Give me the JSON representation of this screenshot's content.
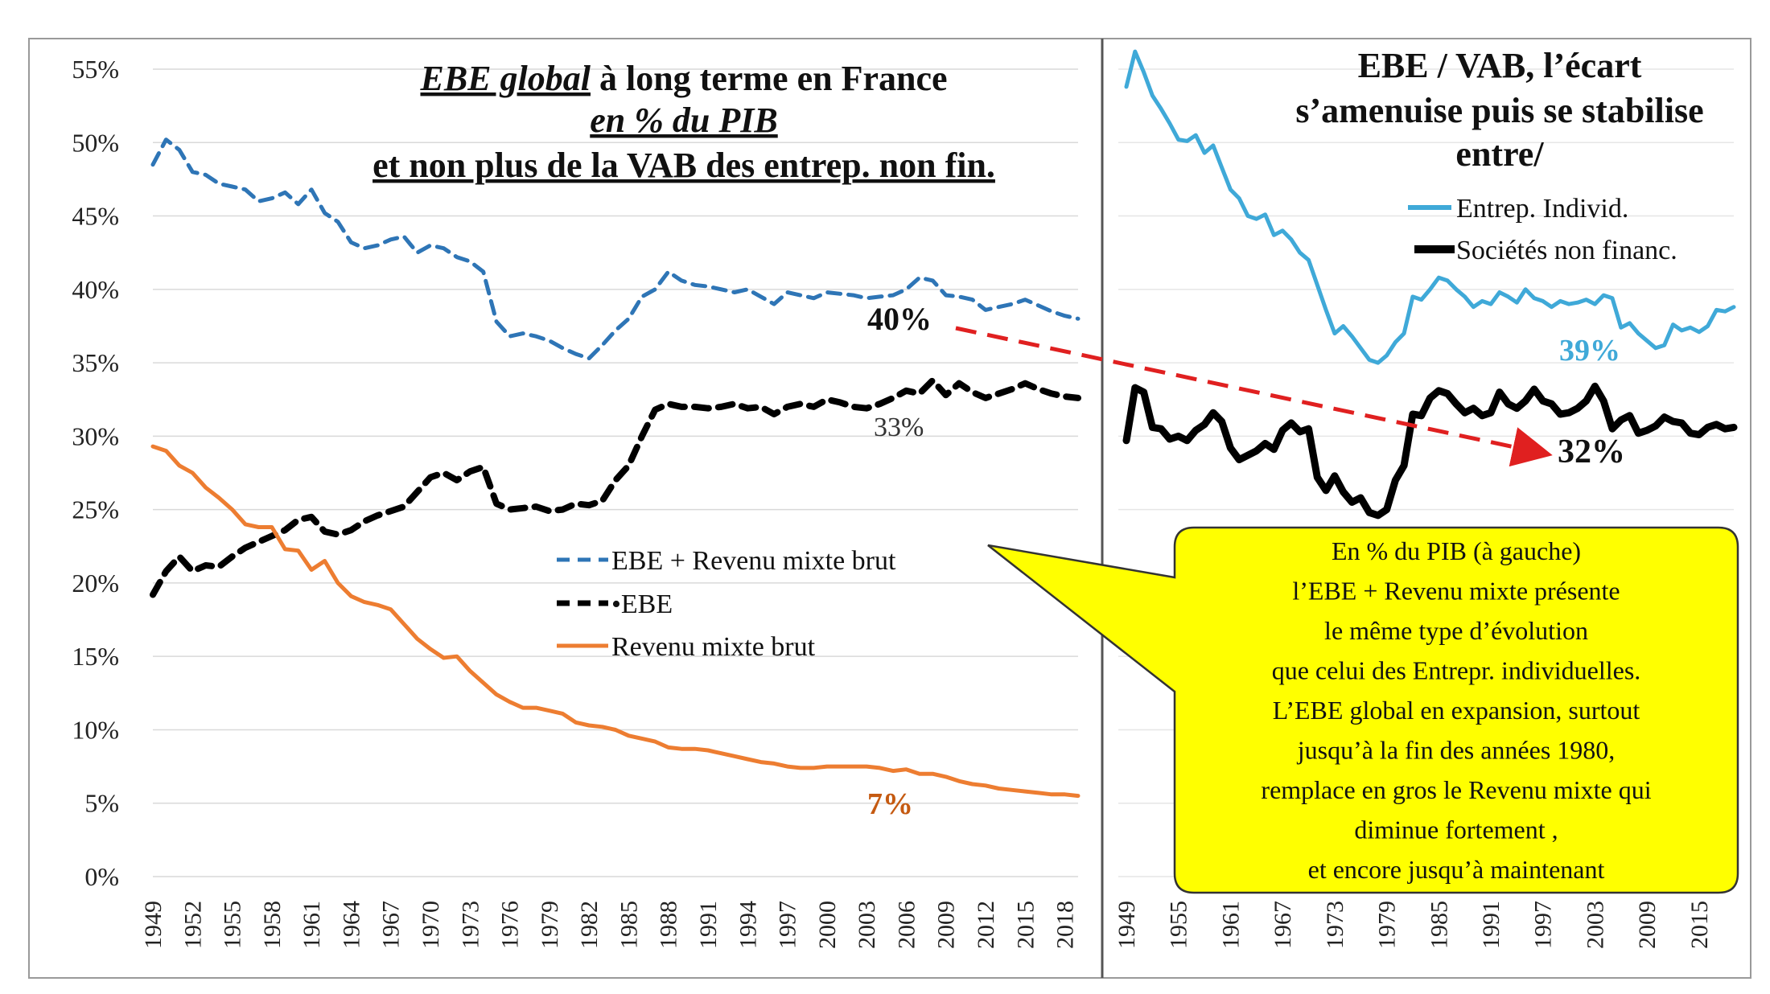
{
  "chart_data": [
    {
      "type": "line",
      "title_lines": [
        {
          "parts": [
            {
              "text": "EBE global",
              "italic": true,
              "underline": true
            },
            {
              "text": " à long terme en France"
            }
          ]
        },
        {
          "parts": [
            {
              "text": "en % du PIB",
              "italic": true,
              "underline": true
            }
          ]
        },
        {
          "parts": [
            {
              "text": "et non plus de la VAB des  entrep. non fin.",
              "underline": true
            }
          ]
        }
      ],
      "y_tick_labels": [
        "0%",
        "5%",
        "10%",
        "15%",
        "20%",
        "25%",
        "30%",
        "35%",
        "40%",
        "45%",
        "50%",
        "55%"
      ],
      "ylim": [
        0,
        55
      ],
      "x_range": [
        1949,
        2019
      ],
      "x_tick_labels": [
        "1949",
        "1952",
        "1955",
        "1958",
        "1961",
        "1964",
        "1967",
        "1970",
        "1973",
        "1976",
        "1979",
        "1982",
        "1985",
        "1988",
        "1991",
        "1994",
        "1997",
        "2000",
        "2003",
        "2006",
        "2009",
        "2012",
        "2015",
        "2018"
      ],
      "series": [
        {
          "name": "EBE + Revenu mixte brut",
          "color": "#2e75b6",
          "style": "dashed",
          "x": [
            1949,
            1950,
            1951,
            1952,
            1953,
            1954,
            1955,
            1956,
            1957,
            1958,
            1959,
            1960,
            1961,
            1962,
            1963,
            1964,
            1965,
            1966,
            1967,
            1968,
            1969,
            1970,
            1971,
            1972,
            1973,
            1974,
            1975,
            1976,
            1977,
            1978,
            1979,
            1980,
            1981,
            1982,
            1983,
            1984,
            1985,
            1986,
            1987,
            1988,
            1989,
            1990,
            1991,
            1992,
            1993,
            1994,
            1995,
            1996,
            1997,
            1998,
            1999,
            2000,
            2001,
            2002,
            2003,
            2004,
            2005,
            2006,
            2007,
            2008,
            2009,
            2010,
            2011,
            2012,
            2013,
            2014,
            2015,
            2016,
            2017,
            2018,
            2019
          ],
          "values": [
            48.5,
            50.2,
            49.5,
            48,
            47.8,
            47.2,
            47,
            46.8,
            46,
            46.2,
            46.6,
            45.8,
            46.8,
            45.2,
            44.6,
            43.2,
            42.8,
            43,
            43.4,
            43.6,
            42.5,
            43,
            42.8,
            42.2,
            41.9,
            41.2,
            37.8,
            36.8,
            37,
            36.8,
            36.5,
            36,
            35.6,
            35.3,
            36.2,
            37.2,
            38,
            39.5,
            40,
            41.2,
            40.6,
            40.3,
            40.2,
            40,
            39.8,
            40,
            39.5,
            39,
            39.8,
            39.6,
            39.4,
            39.8,
            39.7,
            39.6,
            39.4,
            39.5,
            39.6,
            40,
            40.8,
            40.6,
            39.6,
            39.5,
            39.3,
            38.6,
            38.8,
            39,
            39.3,
            38.9,
            38.5,
            38.2,
            38
          ]
        },
        {
          "name": "EBE",
          "color": "#000000",
          "style": "dashed",
          "x": [
            1949,
            1950,
            1951,
            1952,
            1953,
            1954,
            1955,
            1956,
            1957,
            1958,
            1959,
            1960,
            1961,
            1962,
            1963,
            1964,
            1965,
            1966,
            1967,
            1968,
            1969,
            1970,
            1971,
            1972,
            1973,
            1974,
            1975,
            1976,
            1977,
            1978,
            1979,
            1980,
            1981,
            1982,
            1983,
            1984,
            1985,
            1986,
            1987,
            1988,
            1989,
            1990,
            1991,
            1992,
            1993,
            1994,
            1995,
            1996,
            1997,
            1998,
            1999,
            2000,
            2001,
            2002,
            2003,
            2004,
            2005,
            2006,
            2007,
            2008,
            2009,
            2010,
            2011,
            2012,
            2013,
            2014,
            2015,
            2016,
            2017,
            2018,
            2019
          ],
          "values": [
            19.2,
            20.8,
            21.8,
            20.8,
            21.2,
            21.1,
            21.8,
            22.4,
            22.8,
            23.2,
            23.6,
            24.3,
            24.5,
            23.5,
            23.3,
            23.6,
            24.2,
            24.6,
            24.9,
            25.2,
            26.2,
            27.2,
            27.5,
            27,
            27.6,
            27.9,
            25.4,
            25,
            25.1,
            25.2,
            24.9,
            25,
            25.4,
            25.3,
            25.6,
            27,
            28,
            30,
            31.8,
            32.2,
            32,
            32,
            31.9,
            32,
            32.2,
            31.9,
            32,
            31.5,
            32,
            32.2,
            32,
            32.5,
            32.3,
            32,
            31.9,
            32.2,
            32.6,
            33.1,
            32.9,
            33.8,
            32.8,
            33.6,
            33,
            32.6,
            32.9,
            33.2,
            33.6,
            33.2,
            32.9,
            32.7,
            32.6
          ]
        },
        {
          "name": "Revenu mixte brut",
          "color": "#ed7d31",
          "style": "solid",
          "x": [
            1949,
            1950,
            1951,
            1952,
            1953,
            1954,
            1955,
            1956,
            1957,
            1958,
            1959,
            1960,
            1961,
            1962,
            1963,
            1964,
            1965,
            1966,
            1967,
            1968,
            1969,
            1970,
            1971,
            1972,
            1973,
            1974,
            1975,
            1976,
            1977,
            1978,
            1979,
            1980,
            1981,
            1982,
            1983,
            1984,
            1985,
            1986,
            1987,
            1988,
            1989,
            1990,
            1991,
            1992,
            1993,
            1994,
            1995,
            1996,
            1997,
            1998,
            1999,
            2000,
            2001,
            2002,
            2003,
            2004,
            2005,
            2006,
            2007,
            2008,
            2009,
            2010,
            2011,
            2012,
            2013,
            2014,
            2015,
            2016,
            2017,
            2018,
            2019
          ],
          "values": [
            29.3,
            29,
            28,
            27.5,
            26.5,
            25.8,
            25,
            24,
            23.8,
            23.8,
            22.3,
            22.2,
            20.9,
            21.5,
            20,
            19.1,
            18.7,
            18.5,
            18.2,
            17.2,
            16.2,
            15.5,
            14.9,
            15,
            14,
            13.2,
            12.4,
            11.9,
            11.5,
            11.5,
            11.3,
            11.1,
            10.5,
            10.3,
            10.2,
            10,
            9.6,
            9.4,
            9.2,
            8.8,
            8.7,
            8.7,
            8.6,
            8.4,
            8.2,
            8,
            7.8,
            7.7,
            7.5,
            7.4,
            7.4,
            7.5,
            7.5,
            7.5,
            7.5,
            7.4,
            7.2,
            7.3,
            7,
            7,
            6.8,
            6.5,
            6.3,
            6.2,
            6,
            5.9,
            5.8,
            5.7,
            5.6,
            5.6,
            5.5
          ]
        }
      ],
      "annotations": [
        {
          "text": "40%",
          "color": "#111111"
        },
        {
          "text": "33%",
          "color": "#333333"
        },
        {
          "text": "7%",
          "color": "#c55a11"
        }
      ],
      "legend": [
        "EBE + Revenu mixte brut",
        "•EBE",
        "Revenu mixte brut"
      ],
      "legend_position": "center"
    },
    {
      "type": "line",
      "title_lines": [
        "EBE / VAB, l’écart",
        "s’amenuise puis se stabilise",
        "entre/"
      ],
      "ylim": [
        0,
        55
      ],
      "x_range": [
        1949,
        2019
      ],
      "x_tick_labels": [
        "1949",
        "1955",
        "1961",
        "1967",
        "1973",
        "1979",
        "1985",
        "1991",
        "1997",
        "2003",
        "2009",
        "2015"
      ],
      "series": [
        {
          "name": "Entrep. Individ.",
          "color": "#3fa9d8",
          "style": "solid",
          "x": [
            1949,
            1950,
            1951,
            1952,
            1953,
            1954,
            1955,
            1956,
            1957,
            1958,
            1959,
            1960,
            1961,
            1962,
            1963,
            1964,
            1965,
            1966,
            1967,
            1968,
            1969,
            1970,
            1971,
            1972,
            1973,
            1974,
            1975,
            1976,
            1977,
            1978,
            1979,
            1980,
            1981,
            1982,
            1983,
            1984,
            1985,
            1986,
            1987,
            1988,
            1989,
            1990,
            1991,
            1992,
            1993,
            1994,
            1995,
            1996,
            1997,
            1998,
            1999,
            2000,
            2001,
            2002,
            2003,
            2004,
            2005,
            2006,
            2007,
            2008,
            2009,
            2010,
            2011,
            2012,
            2013,
            2014,
            2015,
            2016,
            2017,
            2018,
            2019
          ],
          "values": [
            53.8,
            56.2,
            54.8,
            53.2,
            52.3,
            51.3,
            50.2,
            50.1,
            50.5,
            49.3,
            49.8,
            48.3,
            46.8,
            46.2,
            45,
            44.8,
            45.1,
            43.7,
            44,
            43.4,
            42.5,
            42,
            40.3,
            38.6,
            37,
            37.5,
            36.8,
            36,
            35.2,
            35,
            35.5,
            36.4,
            37,
            39.5,
            39.3,
            40,
            40.8,
            40.6,
            40,
            39.5,
            38.8,
            39.2,
            39,
            39.8,
            39.5,
            39.1,
            40,
            39.4,
            39.2,
            38.8,
            39.2,
            39,
            39.1,
            39.3,
            39,
            39.6,
            39.4,
            37.4,
            37.7,
            37,
            36.5,
            36,
            36.2,
            37.6,
            37.2,
            37.4,
            37.1,
            37.5,
            38.6,
            38.5,
            38.8
          ]
        },
        {
          "name": "Sociétés non financ.",
          "color": "#000000",
          "style": "solid",
          "x": [
            1949,
            1950,
            1951,
            1952,
            1953,
            1954,
            1955,
            1956,
            1957,
            1958,
            1959,
            1960,
            1961,
            1962,
            1963,
            1964,
            1965,
            1966,
            1967,
            1968,
            1969,
            1970,
            1971,
            1972,
            1973,
            1974,
            1975,
            1976,
            1977,
            1978,
            1979,
            1980,
            1981,
            1982,
            1983,
            1984,
            1985,
            1986,
            1987,
            1988,
            1989,
            1990,
            1991,
            1992,
            1993,
            1994,
            1995,
            1996,
            1997,
            1998,
            1999,
            2000,
            2001,
            2002,
            2003,
            2004,
            2005,
            2006,
            2007,
            2008,
            2009,
            2010,
            2011,
            2012,
            2013,
            2014,
            2015,
            2016,
            2017,
            2018,
            2019
          ],
          "values": [
            29.7,
            33.3,
            33,
            30.6,
            30.5,
            29.8,
            30,
            29.7,
            30.4,
            30.8,
            31.6,
            31,
            29.2,
            28.4,
            28.7,
            29,
            29.5,
            29.1,
            30.4,
            30.9,
            30.3,
            30.5,
            27.2,
            26.3,
            27.3,
            26.2,
            25.5,
            25.8,
            24.8,
            24.6,
            25,
            27,
            28,
            31.5,
            31.4,
            32.6,
            33.1,
            32.9,
            32.2,
            31.6,
            31.9,
            31.4,
            31.6,
            33,
            32.2,
            31.9,
            32.4,
            33.2,
            32.4,
            32.2,
            31.5,
            31.6,
            31.9,
            32.4,
            33.4,
            32.4,
            30.5,
            31.1,
            31.4,
            30.2,
            30.4,
            30.7,
            31.3,
            31,
            30.9,
            30.2,
            30.1,
            30.6,
            30.8,
            30.5,
            30.6
          ]
        }
      ],
      "annotations": [
        {
          "text": "39%",
          "color": "#3fa9d8"
        },
        {
          "text": "32%",
          "color": "#111111"
        }
      ],
      "legend": [
        "Entrep. Individ.",
        "Sociétés non financ."
      ],
      "legend_position": "top-right"
    }
  ],
  "arrow": {
    "color": "#e02020",
    "from_label": "40%",
    "to_label": "32%"
  },
  "callout": {
    "fill": "#ffff00",
    "lines": [
      "En % du PIB (à gauche)",
      "l’EBE + Revenu mixte présente",
      "le même type d’évolution",
      "que celui des Entrepr. individuelles.",
      "L’EBE global en expansion, surtout",
      "jusqu’à la fin des années 1980,",
      "remplace en gros le Revenu mixte qui",
      "diminue fortement ,",
      "et encore jusqu’à maintenant"
    ]
  }
}
